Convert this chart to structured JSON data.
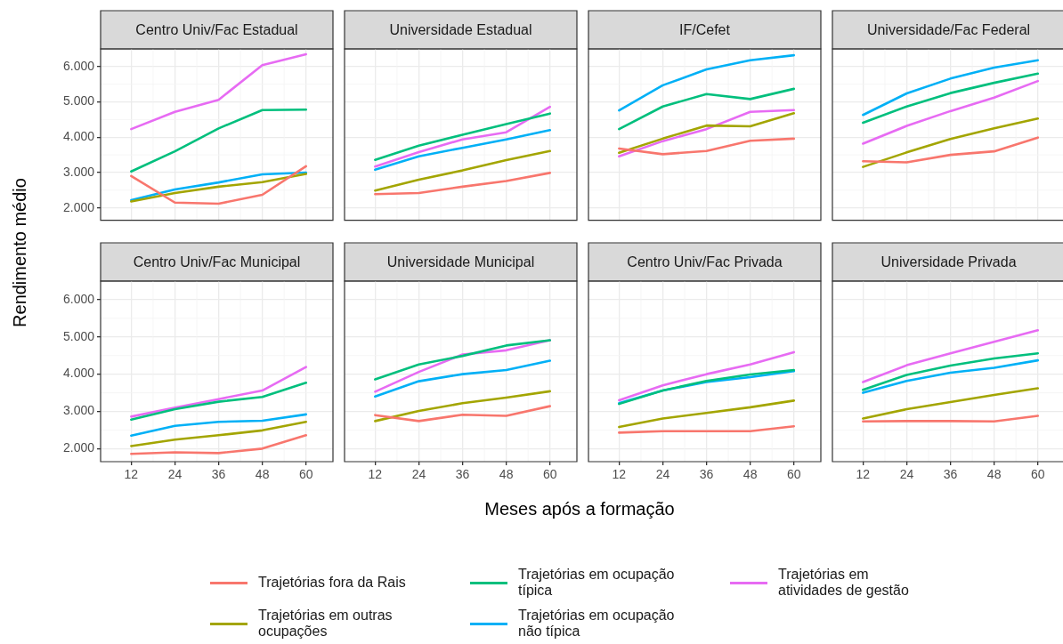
{
  "chart_data": [
    {
      "type": "line",
      "title": "Centro Univ/Fac Estadual",
      "ylabel": "Rendimento médio",
      "legend": "bottom",
      "grid": true,
      "tick_labels": "y",
      "x": [
        12,
        24,
        36,
        48,
        60
      ],
      "xlim": [
        3.6,
        67.4
      ],
      "xticks": [
        12,
        24,
        36,
        48,
        60
      ],
      "ylim": [
        1650,
        6500
      ],
      "yticks": [
        {
          "value": 2000,
          "label": "2.000"
        },
        {
          "value": 3000,
          "label": "3.000"
        },
        {
          "value": 4000,
          "label": "4.000"
        },
        {
          "value": 5000,
          "label": "5.000"
        },
        {
          "value": 6000,
          "label": "6.000"
        }
      ],
      "series": [
        {
          "name": "Trajetórias fora da Rais",
          "color": "#f8766d",
          "values": [
            2900,
            2150,
            2120,
            2370,
            3180
          ]
        },
        {
          "name": "Trajetórias em outras\nocupações",
          "color": "#a3a500",
          "values": [
            2180,
            2420,
            2600,
            2730,
            2960
          ]
        },
        {
          "name": "Trajetórias em ocupação\ntípica",
          "color": "#00bf7d",
          "values": [
            3030,
            3600,
            4250,
            4770,
            4780
          ]
        },
        {
          "name": "Trajetórias em ocupação\nnão típica",
          "color": "#00b0f6",
          "values": [
            2220,
            2520,
            2720,
            2950,
            3000
          ]
        },
        {
          "name": "Trajetórias em\natividades de gestão",
          "color": "#e76bf3",
          "values": [
            4230,
            4720,
            5060,
            6040,
            6350
          ]
        }
      ]
    },
    {
      "type": "line",
      "title": "Universidade Estadual",
      "grid": true,
      "tick_labels": false,
      "x": [
        12,
        24,
        36,
        48,
        60
      ],
      "xlim": [
        3.6,
        67.4
      ],
      "xticks": [
        12,
        24,
        36,
        48,
        60
      ],
      "ylim": [
        1650,
        6500
      ],
      "yticks": [
        2000,
        3000,
        4000,
        5000,
        6000
      ],
      "series": [
        {
          "color": "#f8766d",
          "values": [
            2390,
            2420,
            2600,
            2760,
            2990
          ]
        },
        {
          "color": "#a3a500",
          "values": [
            2490,
            2800,
            3060,
            3350,
            3610
          ]
        },
        {
          "color": "#00bf7d",
          "values": [
            3360,
            3760,
            4070,
            4370,
            4670
          ]
        },
        {
          "color": "#00b0f6",
          "values": [
            3080,
            3460,
            3700,
            3940,
            4200
          ]
        },
        {
          "color": "#e76bf3",
          "values": [
            3170,
            3580,
            3940,
            4140,
            4860
          ]
        }
      ]
    },
    {
      "type": "line",
      "title": "IF/Cefet",
      "grid": true,
      "tick_labels": false,
      "x": [
        12,
        24,
        36,
        48,
        60
      ],
      "xlim": [
        3.6,
        67.4
      ],
      "xticks": [
        12,
        24,
        36,
        48,
        60
      ],
      "ylim": [
        1650,
        6500
      ],
      "yticks": [
        2000,
        3000,
        4000,
        5000,
        6000
      ],
      "series": [
        {
          "color": "#f8766d",
          "values": [
            3680,
            3520,
            3610,
            3900,
            3960
          ]
        },
        {
          "color": "#a3a500",
          "values": [
            3560,
            3960,
            4330,
            4310,
            4680
          ]
        },
        {
          "color": "#00bf7d",
          "values": [
            4230,
            4870,
            5220,
            5080,
            5370
          ]
        },
        {
          "color": "#00b0f6",
          "values": [
            4760,
            5470,
            5920,
            6180,
            6320
          ]
        },
        {
          "color": "#e76bf3",
          "values": [
            3460,
            3890,
            4230,
            4720,
            4770
          ]
        }
      ]
    },
    {
      "type": "line",
      "title": "Universidade/Fac Federal",
      "grid": true,
      "tick_labels": false,
      "x": [
        12,
        24,
        36,
        48,
        60
      ],
      "xlim": [
        3.6,
        67.4
      ],
      "xticks": [
        12,
        24,
        36,
        48,
        60
      ],
      "ylim": [
        1650,
        6500
      ],
      "yticks": [
        2000,
        3000,
        4000,
        5000,
        6000
      ],
      "series": [
        {
          "color": "#f8766d",
          "values": [
            3320,
            3290,
            3500,
            3600,
            3990
          ]
        },
        {
          "color": "#a3a500",
          "values": [
            3160,
            3570,
            3950,
            4250,
            4530
          ]
        },
        {
          "color": "#00bf7d",
          "values": [
            4410,
            4870,
            5250,
            5540,
            5800
          ]
        },
        {
          "color": "#00b0f6",
          "values": [
            4630,
            5240,
            5660,
            5970,
            6180
          ]
        },
        {
          "color": "#e76bf3",
          "values": [
            3820,
            4320,
            4740,
            5120,
            5590
          ]
        }
      ]
    },
    {
      "type": "line",
      "title": "Centro Univ/Fac Municipal",
      "grid": true,
      "x": [
        12,
        24,
        36,
        48,
        60
      ],
      "xlim": [
        3.6,
        67.4
      ],
      "xticks": [
        12,
        24,
        36,
        48,
        60
      ],
      "ylim": [
        1650,
        6500
      ],
      "yticks": [
        {
          "value": 2000,
          "label": "2.000"
        },
        {
          "value": 3000,
          "label": "3.000"
        },
        {
          "value": 4000,
          "label": "4.000"
        },
        {
          "value": 5000,
          "label": "5.000"
        },
        {
          "value": 6000,
          "label": "6.000"
        }
      ],
      "series": [
        {
          "color": "#f8766d",
          "values": [
            1860,
            1900,
            1880,
            2000,
            2360
          ]
        },
        {
          "color": "#a3a500",
          "values": [
            2070,
            2240,
            2360,
            2490,
            2720
          ]
        },
        {
          "color": "#00bf7d",
          "values": [
            2780,
            3060,
            3260,
            3390,
            3770
          ]
        },
        {
          "color": "#00b0f6",
          "values": [
            2350,
            2610,
            2720,
            2750,
            2920
          ]
        },
        {
          "color": "#e76bf3",
          "values": [
            2860,
            3100,
            3330,
            3560,
            4190
          ]
        }
      ]
    },
    {
      "type": "line",
      "title": "Universidade Municipal",
      "xlabel": "Meses após a formação",
      "grid": true,
      "tick_labels": "x",
      "x": [
        12,
        24,
        36,
        48,
        60
      ],
      "xlim": [
        3.6,
        67.4
      ],
      "xticks": [
        12,
        24,
        36,
        48,
        60
      ],
      "ylim": [
        1650,
        6500
      ],
      "yticks": [
        2000,
        3000,
        4000,
        5000,
        6000
      ],
      "series": [
        {
          "color": "#f8766d",
          "values": [
            2900,
            2740,
            2910,
            2880,
            3140
          ]
        },
        {
          "color": "#a3a500",
          "values": [
            2740,
            3010,
            3220,
            3370,
            3540
          ]
        },
        {
          "color": "#00bf7d",
          "values": [
            3860,
            4260,
            4490,
            4770,
            4910
          ]
        },
        {
          "color": "#00b0f6",
          "values": [
            3400,
            3810,
            4000,
            4110,
            4360
          ]
        },
        {
          "color": "#e76bf3",
          "values": [
            3530,
            4060,
            4530,
            4640,
            4910
          ]
        }
      ]
    },
    {
      "type": "line",
      "title": "Centro Univ/Fac Privada",
      "grid": true,
      "tick_labels": "x",
      "x": [
        12,
        24,
        36,
        48,
        60
      ],
      "xlim": [
        3.6,
        67.4
      ],
      "xticks": [
        12,
        24,
        36,
        48,
        60
      ],
      "ylim": [
        1650,
        6500
      ],
      "yticks": [
        2000,
        3000,
        4000,
        5000,
        6000
      ],
      "series": [
        {
          "color": "#f8766d",
          "values": [
            2430,
            2470,
            2470,
            2470,
            2600
          ]
        },
        {
          "color": "#a3a500",
          "values": [
            2580,
            2810,
            2960,
            3110,
            3290
          ]
        },
        {
          "color": "#00bf7d",
          "values": [
            3200,
            3560,
            3820,
            3990,
            4110
          ]
        },
        {
          "color": "#00b0f6",
          "values": [
            3220,
            3560,
            3790,
            3920,
            4080
          ]
        },
        {
          "color": "#e76bf3",
          "values": [
            3300,
            3700,
            4000,
            4260,
            4590
          ]
        }
      ]
    },
    {
      "type": "line",
      "title": "Universidade Privada",
      "grid": true,
      "tick_labels": "x",
      "x": [
        12,
        24,
        36,
        48,
        60
      ],
      "xlim": [
        3.6,
        67.4
      ],
      "xticks": [
        12,
        24,
        36,
        48,
        60
      ],
      "ylim": [
        1650,
        6500
      ],
      "yticks": [
        2000,
        3000,
        4000,
        5000,
        6000
      ],
      "series": [
        {
          "color": "#f8766d",
          "values": [
            2730,
            2740,
            2740,
            2730,
            2880
          ]
        },
        {
          "color": "#a3a500",
          "values": [
            2810,
            3060,
            3250,
            3440,
            3620
          ]
        },
        {
          "color": "#00bf7d",
          "values": [
            3580,
            3980,
            4230,
            4420,
            4560
          ]
        },
        {
          "color": "#00b0f6",
          "values": [
            3500,
            3820,
            4040,
            4170,
            4370
          ]
        },
        {
          "color": "#e76bf3",
          "values": [
            3790,
            4240,
            4560,
            4870,
            5180
          ]
        }
      ]
    }
  ]
}
